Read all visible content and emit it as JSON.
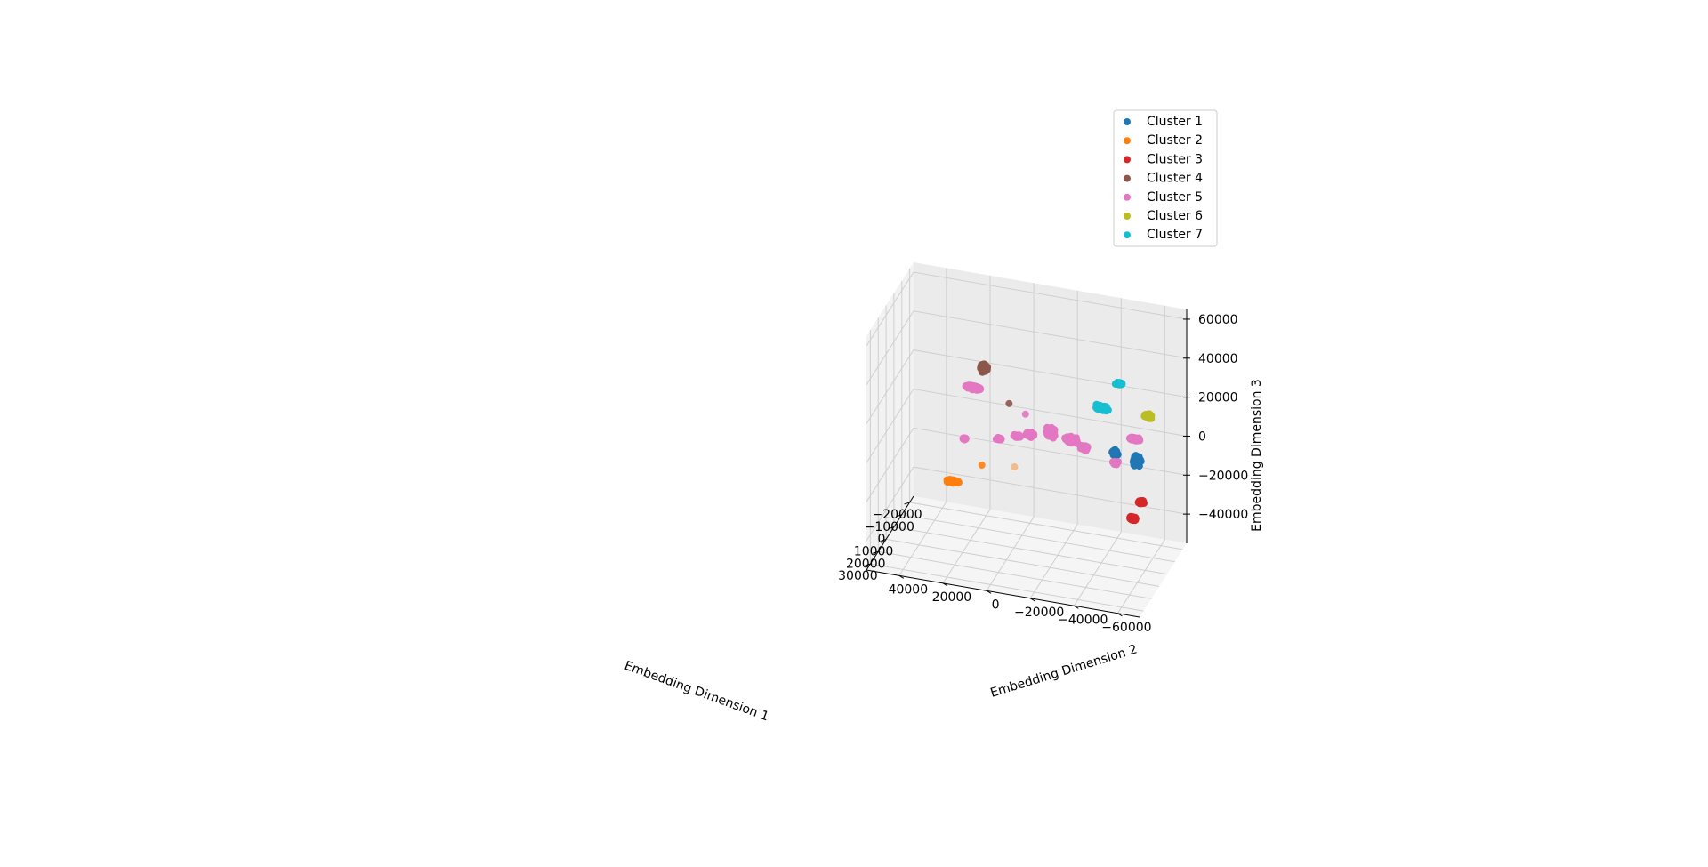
{
  "chart_data": {
    "type": "scatter",
    "projection": "3d",
    "title": "",
    "axes": {
      "x": {
        "label": "Embedding Dimension 1",
        "ticks": [
          -20000,
          -10000,
          0,
          10000,
          20000,
          30000
        ],
        "tick_labels": [
          "−20000",
          "−10000",
          "0",
          "10000",
          "20000",
          "30000"
        ],
        "lim": [
          -25000,
          35000
        ]
      },
      "y": {
        "label": "Embedding Dimension 2",
        "ticks": [
          -60000,
          -40000,
          -20000,
          0,
          20000,
          40000
        ],
        "tick_labels": [
          "−60000",
          "−40000",
          "−20000",
          "0",
          "20000",
          "40000"
        ],
        "lim": [
          -70000,
          55000
        ]
      },
      "z": {
        "label": "Embedding Dimension 3",
        "ticks": [
          -40000,
          -20000,
          0,
          20000,
          40000,
          60000
        ],
        "tick_labels": [
          "−40000",
          "−20000",
          "0",
          "20000",
          "40000",
          "60000"
        ],
        "lim": [
          -55000,
          65000
        ]
      }
    },
    "grid": true,
    "legend_position": "top-right",
    "series": [
      {
        "name": "Cluster 1",
        "color": "#1f77b4",
        "clusters": [
          {
            "x": 5000,
            "y": -58000,
            "z": 4000,
            "dx": 1400,
            "dy": 2000,
            "dz": 3000,
            "n": 130
          },
          {
            "x": 5000,
            "y": -48000,
            "z": 6000,
            "dx": 1200,
            "dy": 1600,
            "dz": 1800,
            "n": 60
          }
        ]
      },
      {
        "name": "Cluster 2",
        "color": "#ff7f0e",
        "clusters": [
          {
            "x": 5000,
            "y": 26000,
            "z": -23000,
            "dx": 900,
            "dy": 3500,
            "dz": 1000,
            "n": 70
          }
        ],
        "outliers": [
          {
            "x": 5000,
            "y": 13000,
            "z": -12000
          },
          {
            "x": 5000,
            "y": -2000,
            "z": -10000
          }
        ]
      },
      {
        "name": "Cluster 3",
        "color": "#d62728",
        "clusters": [
          {
            "x": 18000,
            "y": -61000,
            "z": -17000,
            "dx": 700,
            "dy": 2000,
            "dz": 1000,
            "n": 60
          },
          {
            "x": 5000,
            "y": -60000,
            "z": -17000,
            "dx": 700,
            "dy": 1800,
            "dz": 1000,
            "n": 50
          }
        ]
      },
      {
        "name": "Cluster 4",
        "color": "#8c564b",
        "clusters": [
          {
            "x": 5000,
            "y": 12000,
            "z": 38000,
            "dx": 900,
            "dy": 1800,
            "dz": 2500,
            "n": 100
          }
        ],
        "outliers": [
          {
            "x": 5000,
            "y": 500,
            "z": 22000
          }
        ]
      },
      {
        "name": "Cluster 5",
        "color": "#e377c2",
        "clusters": [
          {
            "x": 5000,
            "y": -57000,
            "z": 15000,
            "dx": 800,
            "dy": 3500,
            "dz": 800,
            "n": 80
          },
          {
            "x": 5000,
            "y": -48000,
            "z": 1000,
            "dx": 800,
            "dy": 1500,
            "dz": 800,
            "n": 40
          },
          {
            "x": 5000,
            "y": -34000,
            "z": 6000,
            "dx": 1200,
            "dy": 2000,
            "dz": 1200,
            "n": 60
          },
          {
            "x": 5000,
            "y": -28000,
            "z": 9000,
            "dx": 1200,
            "dy": 3500,
            "dz": 1800,
            "n": 150
          },
          {
            "x": 5000,
            "y": -19000,
            "z": 11000,
            "dx": 1200,
            "dy": 2500,
            "dz": 3000,
            "n": 130
          },
          {
            "x": 5000,
            "y": -9000,
            "z": 8000,
            "dx": 1000,
            "dy": 2500,
            "dz": 1200,
            "n": 70
          },
          {
            "x": 5000,
            "y": -3000,
            "z": 6000,
            "dx": 700,
            "dy": 2000,
            "dz": 700,
            "n": 40
          },
          {
            "x": 5000,
            "y": 17000,
            "z": 27000,
            "dx": 900,
            "dy": 5000,
            "dz": 1200,
            "n": 130
          },
          {
            "x": 5000,
            "y": 5000,
            "z": 3000,
            "dx": 500,
            "dy": 1500,
            "dz": 500,
            "n": 30
          },
          {
            "x": 5000,
            "y": 21000,
            "z": 0,
            "dx": 500,
            "dy": 1200,
            "dz": 500,
            "n": 30
          }
        ],
        "outliers": [
          {
            "x": 5000,
            "y": -7000,
            "z": 18000
          }
        ]
      },
      {
        "name": "Cluster 6",
        "color": "#bcbd22",
        "clusters": [
          {
            "x": 5000,
            "y": -63000,
            "z": 28000,
            "dx": 900,
            "dy": 2200,
            "dz": 1300,
            "n": 90
          }
        ]
      },
      {
        "name": "Cluster 7",
        "color": "#17becf",
        "clusters": [
          {
            "x": 5000,
            "y": -50000,
            "z": 42000,
            "dx": 600,
            "dy": 2000,
            "dz": 800,
            "n": 40
          },
          {
            "x": 5000,
            "y": -42000,
            "z": 28000,
            "dx": 1000,
            "dy": 3500,
            "dz": 1500,
            "n": 110
          }
        ]
      }
    ]
  }
}
